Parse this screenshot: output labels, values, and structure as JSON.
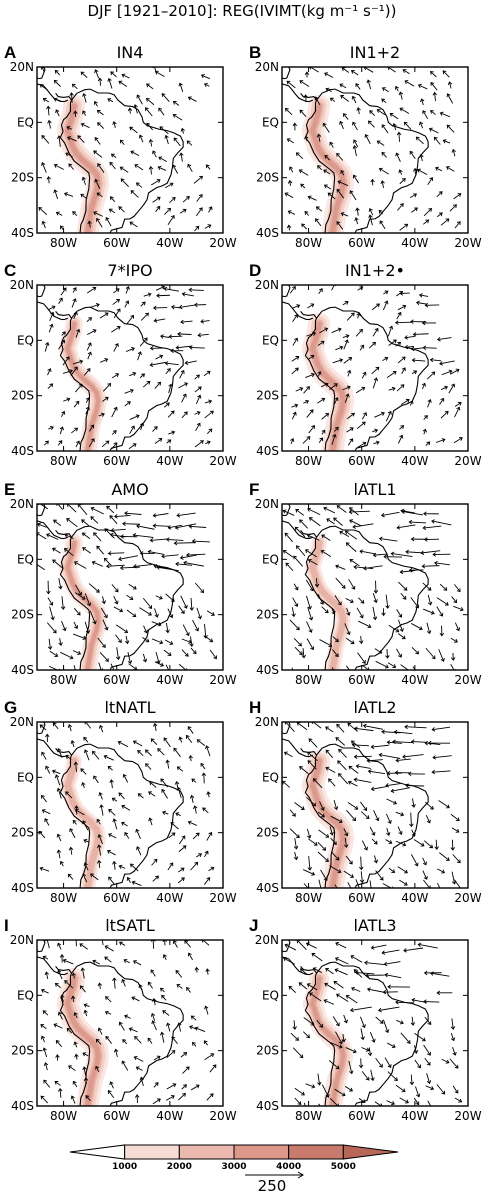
{
  "figure_title": "DJF [1921–2010]: REG(IVIMT(kg m⁻¹ s⁻¹))",
  "axes": {
    "x_ticks": [
      "80W",
      "60W",
      "40W",
      "20W"
    ],
    "y_ticks": [
      "20N",
      "EQ",
      "20S",
      "40S"
    ]
  },
  "panels": [
    {
      "letter": "A",
      "title": "IN4"
    },
    {
      "letter": "B",
      "title": "IN1+2"
    },
    {
      "letter": "C",
      "title": "7*IPO"
    },
    {
      "letter": "D",
      "title": "IN1+2•"
    },
    {
      "letter": "E",
      "title": "AMO"
    },
    {
      "letter": "F",
      "title": "lATL1"
    },
    {
      "letter": "G",
      "title": "ltNATL"
    },
    {
      "letter": "H",
      "title": "lATL2"
    },
    {
      "letter": "I",
      "title": "ltSATL"
    },
    {
      "letter": "J",
      "title": "lATL3"
    }
  ],
  "colorbar": {
    "labels": [
      "1000",
      "2000",
      "3000",
      "4000",
      "5000"
    ],
    "colors": [
      "#ffffff",
      "#f6dcd6",
      "#ebb9ae",
      "#dc988a",
      "#c97a6d",
      "#b86757"
    ]
  },
  "reference_vector": {
    "label": "250"
  },
  "chart_data": {
    "type": "vector_map",
    "x_range": [
      "90W",
      "20W"
    ],
    "y_range": [
      "40S",
      "20N"
    ],
    "x_ticks": [
      "80W",
      "60W",
      "40W",
      "20W"
    ],
    "y_ticks": [
      "20N",
      "EQ",
      "20S",
      "40S"
    ],
    "panels": [
      "IN4",
      "IN1+2",
      "7*IPO",
      "IN1+2•",
      "AMO",
      "lATL1",
      "ltNATL",
      "lATL2",
      "ltSATL",
      "lATL3"
    ],
    "shading_levels": [
      1000,
      2000,
      3000,
      4000,
      5000
    ],
    "reference_vector": 250
  }
}
